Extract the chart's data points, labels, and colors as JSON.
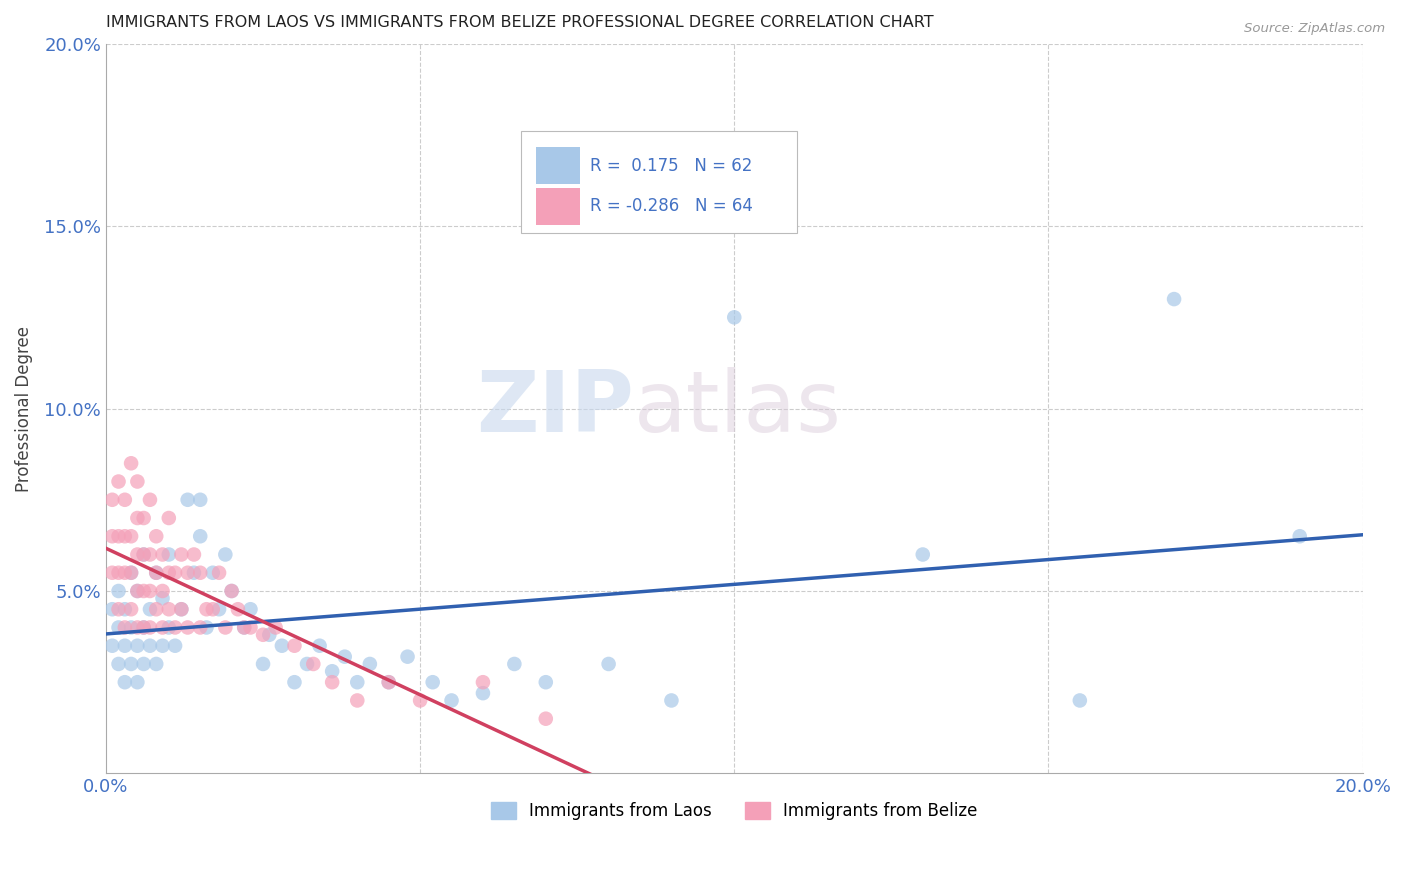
{
  "title": "IMMIGRANTS FROM LAOS VS IMMIGRANTS FROM BELIZE PROFESSIONAL DEGREE CORRELATION CHART",
  "source": "Source: ZipAtlas.com",
  "ylabel": "Professional Degree",
  "x_min": 0.0,
  "x_max": 0.2,
  "y_min": 0.0,
  "y_max": 0.2,
  "series_laos": {
    "label": "Immigrants from Laos",
    "color": "#a8c8e8",
    "R": 0.175,
    "N": 62,
    "line_color": "#3060b0",
    "x": [
      0.001,
      0.001,
      0.002,
      0.002,
      0.002,
      0.003,
      0.003,
      0.003,
      0.004,
      0.004,
      0.004,
      0.005,
      0.005,
      0.005,
      0.006,
      0.006,
      0.006,
      0.007,
      0.007,
      0.008,
      0.008,
      0.009,
      0.009,
      0.01,
      0.01,
      0.011,
      0.012,
      0.013,
      0.014,
      0.015,
      0.015,
      0.016,
      0.017,
      0.018,
      0.019,
      0.02,
      0.022,
      0.023,
      0.025,
      0.026,
      0.028,
      0.03,
      0.032,
      0.034,
      0.036,
      0.038,
      0.04,
      0.042,
      0.045,
      0.048,
      0.052,
      0.055,
      0.06,
      0.065,
      0.07,
      0.08,
      0.09,
      0.1,
      0.13,
      0.155,
      0.17,
      0.19
    ],
    "y": [
      0.035,
      0.045,
      0.03,
      0.04,
      0.05,
      0.025,
      0.035,
      0.045,
      0.03,
      0.04,
      0.055,
      0.025,
      0.035,
      0.05,
      0.03,
      0.04,
      0.06,
      0.035,
      0.045,
      0.03,
      0.055,
      0.035,
      0.048,
      0.04,
      0.06,
      0.035,
      0.045,
      0.075,
      0.055,
      0.065,
      0.075,
      0.04,
      0.055,
      0.045,
      0.06,
      0.05,
      0.04,
      0.045,
      0.03,
      0.038,
      0.035,
      0.025,
      0.03,
      0.035,
      0.028,
      0.032,
      0.025,
      0.03,
      0.025,
      0.032,
      0.025,
      0.02,
      0.022,
      0.03,
      0.025,
      0.03,
      0.02,
      0.125,
      0.06,
      0.02,
      0.13,
      0.065
    ]
  },
  "series_belize": {
    "label": "Immigrants from Belize",
    "color": "#f4a0b8",
    "R": -0.286,
    "N": 64,
    "line_color": "#d04060",
    "x": [
      0.001,
      0.001,
      0.001,
      0.002,
      0.002,
      0.002,
      0.002,
      0.003,
      0.003,
      0.003,
      0.003,
      0.004,
      0.004,
      0.004,
      0.004,
      0.005,
      0.005,
      0.005,
      0.005,
      0.005,
      0.006,
      0.006,
      0.006,
      0.006,
      0.007,
      0.007,
      0.007,
      0.007,
      0.008,
      0.008,
      0.008,
      0.009,
      0.009,
      0.009,
      0.01,
      0.01,
      0.01,
      0.011,
      0.011,
      0.012,
      0.012,
      0.013,
      0.013,
      0.014,
      0.015,
      0.015,
      0.016,
      0.017,
      0.018,
      0.019,
      0.02,
      0.021,
      0.022,
      0.023,
      0.025,
      0.027,
      0.03,
      0.033,
      0.036,
      0.04,
      0.045,
      0.05,
      0.06,
      0.07
    ],
    "y": [
      0.055,
      0.065,
      0.075,
      0.045,
      0.055,
      0.065,
      0.08,
      0.04,
      0.055,
      0.065,
      0.075,
      0.045,
      0.055,
      0.065,
      0.085,
      0.04,
      0.05,
      0.06,
      0.07,
      0.08,
      0.04,
      0.05,
      0.06,
      0.07,
      0.04,
      0.05,
      0.06,
      0.075,
      0.045,
      0.055,
      0.065,
      0.04,
      0.05,
      0.06,
      0.045,
      0.055,
      0.07,
      0.04,
      0.055,
      0.045,
      0.06,
      0.04,
      0.055,
      0.06,
      0.04,
      0.055,
      0.045,
      0.045,
      0.055,
      0.04,
      0.05,
      0.045,
      0.04,
      0.04,
      0.038,
      0.04,
      0.035,
      0.03,
      0.025,
      0.02,
      0.025,
      0.02,
      0.025,
      0.015
    ]
  },
  "watermark_zip": "ZIP",
  "watermark_atlas": "atlas",
  "background_color": "#ffffff",
  "grid_color": "#cccccc",
  "title_color": "#222222",
  "axis_color": "#4472c4",
  "legend_R_color": "#4472c4"
}
